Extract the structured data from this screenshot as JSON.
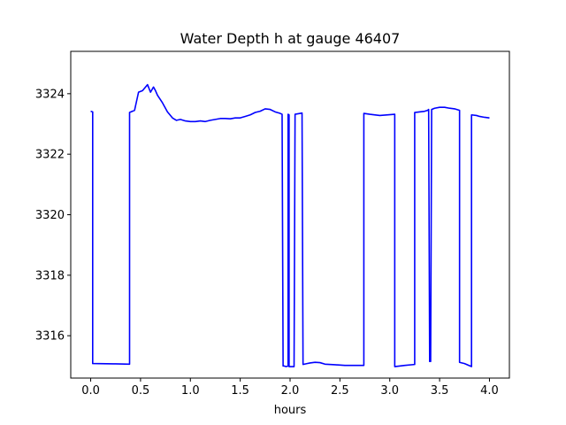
{
  "chart_data": {
    "type": "line",
    "title": "Water Depth h at gauge 46407",
    "xlabel": "hours",
    "ylabel": "",
    "xlim": [
      -0.2,
      4.2
    ],
    "ylim": [
      3314.6,
      3325.4
    ],
    "xticks": [
      0.0,
      0.5,
      1.0,
      1.5,
      2.0,
      2.5,
      3.0,
      3.5,
      4.0
    ],
    "xtick_labels": [
      "0.0",
      "0.5",
      "1.0",
      "1.5",
      "2.0",
      "2.5",
      "3.0",
      "3.5",
      "4.0"
    ],
    "yticks": [
      3316,
      3318,
      3320,
      3322,
      3324
    ],
    "ytick_labels": [
      "3316",
      "3318",
      "3320",
      "3322",
      "3324"
    ],
    "grid": false,
    "legend": "none",
    "series": [
      {
        "color": "#0000ff",
        "x": [
          0.0,
          0.02,
          0.02,
          0.25,
          0.39,
          0.39,
          0.44,
          0.48,
          0.52,
          0.57,
          0.6,
          0.63,
          0.65,
          0.67,
          0.72,
          0.77,
          0.82,
          0.86,
          0.9,
          0.95,
          1.0,
          1.05,
          1.1,
          1.15,
          1.2,
          1.25,
          1.3,
          1.35,
          1.4,
          1.45,
          1.5,
          1.55,
          1.6,
          1.65,
          1.7,
          1.75,
          1.8,
          1.85,
          1.9,
          1.92,
          1.93,
          1.94,
          1.96,
          1.98,
          1.98,
          1.99,
          1.99,
          2.04,
          2.05,
          2.12,
          2.13,
          2.17,
          2.2,
          2.25,
          2.3,
          2.35,
          2.45,
          2.55,
          2.74,
          2.74,
          2.8,
          2.9,
          3.05,
          3.05,
          3.15,
          3.25,
          3.25,
          3.35,
          3.38,
          3.39,
          3.4,
          3.41,
          3.42,
          3.45,
          3.5,
          3.55,
          3.6,
          3.65,
          3.7,
          3.7,
          3.75,
          3.82,
          3.82,
          3.87,
          3.9,
          3.95,
          4.0
        ],
        "y": [
          3323.42,
          3323.4,
          3315.08,
          3315.07,
          3315.06,
          3323.38,
          3323.45,
          3324.05,
          3324.1,
          3324.3,
          3324.05,
          3324.22,
          3324.1,
          3323.95,
          3323.7,
          3323.4,
          3323.2,
          3323.12,
          3323.15,
          3323.1,
          3323.08,
          3323.08,
          3323.1,
          3323.08,
          3323.12,
          3323.15,
          3323.18,
          3323.18,
          3323.17,
          3323.2,
          3323.2,
          3323.25,
          3323.3,
          3323.38,
          3323.42,
          3323.5,
          3323.48,
          3323.4,
          3323.35,
          3323.32,
          3315.0,
          3315.0,
          3314.98,
          3315.0,
          3323.32,
          3323.3,
          3314.98,
          3314.98,
          3323.32,
          3323.36,
          3315.05,
          3315.08,
          3315.1,
          3315.12,
          3315.11,
          3315.06,
          3315.04,
          3315.02,
          3315.02,
          3323.35,
          3323.32,
          3323.28,
          3323.32,
          3314.98,
          3315.02,
          3315.05,
          3323.38,
          3323.42,
          3323.45,
          3323.48,
          3315.15,
          3315.15,
          3323.48,
          3323.52,
          3323.55,
          3323.55,
          3323.52,
          3323.5,
          3323.45,
          3315.12,
          3315.08,
          3314.98,
          3323.3,
          3323.28,
          3323.25,
          3323.22,
          3323.2
        ]
      }
    ]
  }
}
